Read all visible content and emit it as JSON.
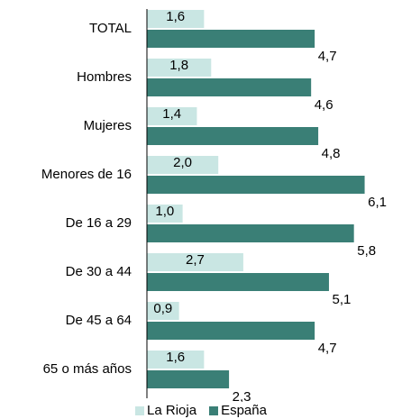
{
  "chart_data": {
    "type": "bar",
    "orientation": "horizontal",
    "categories": [
      "TOTAL",
      "Hombres",
      "Mujeres",
      "Menores de 16",
      "De 16 a 29",
      "De 30 a 44",
      "De 45 a 64",
      "65 o más años"
    ],
    "series": [
      {
        "name": "La Rioja",
        "color": "#c9e6e3",
        "values": [
          1.6,
          1.8,
          1.4,
          2.0,
          1.0,
          2.7,
          0.9,
          1.6
        ],
        "labels": [
          "1,6",
          "1,8",
          "1,4",
          "2,0",
          "1,0",
          "2,7",
          "0,9",
          "1,6"
        ]
      },
      {
        "name": "España",
        "color": "#3a7f76",
        "values": [
          4.7,
          4.6,
          4.8,
          6.1,
          5.8,
          5.1,
          4.7,
          2.3
        ],
        "labels": [
          "4,7",
          "4,6",
          "4,8",
          "6,1",
          "5,8",
          "5,1",
          "4,7",
          "2,3"
        ]
      }
    ],
    "xlim": [
      0,
      6.1
    ],
    "grid": false,
    "legend_position": "bottom"
  }
}
